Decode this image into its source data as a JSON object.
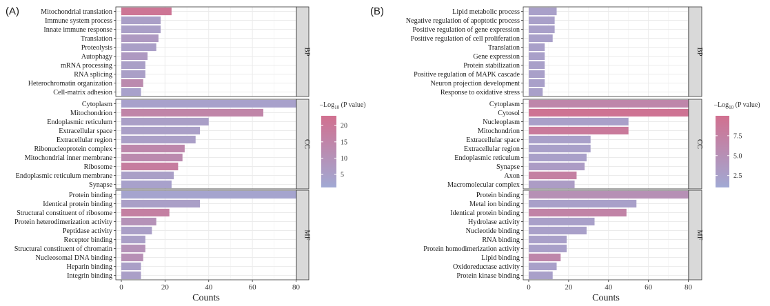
{
  "colors": {
    "low": "#a1a9d4",
    "high": "#d1708f",
    "grid": "#ebebeb",
    "strip": "#d9d9d9",
    "background": "#ffffff"
  },
  "panels": [
    {
      "letter": "(A)",
      "xlabel": "Counts",
      "xticks": [
        "0",
        "20",
        "40",
        "60",
        "80"
      ],
      "legend": {
        "title_prefix": "–Log",
        "title_sub": "10",
        "title_suffix": " (P value)",
        "tick_labels": [
          "20",
          "15",
          "10",
          "5"
        ]
      }
    },
    {
      "letter": "(B)",
      "xlabel": "Counts",
      "xticks": [
        "0",
        "20",
        "40",
        "60",
        "80"
      ],
      "legend": {
        "title_prefix": "–Log",
        "title_sub": "10",
        "title_suffix": " (P value)",
        "tick_labels": [
          "7.5",
          "5.0",
          "2.5"
        ]
      }
    }
  ],
  "chart_data": [
    {
      "type": "bar",
      "orientation": "horizontal",
      "title": "(A)",
      "xlabel": "Counts",
      "xlim": [
        0,
        85
      ],
      "color_legend": {
        "title": "–Log10 (P value)",
        "range": [
          1,
          23
        ],
        "ticks": [
          5,
          10,
          15,
          20
        ]
      },
      "facets": [
        {
          "name": "BP",
          "categories": [
            "Mitochondrial translation",
            "Immune system process",
            "Innate immune response",
            "Translation",
            "Proteolysis",
            "Autophagy",
            "mRNA processing",
            "RNA splicing",
            "Heterochromatin organization",
            "Cell-matrix adhesion"
          ],
          "values": [
            23,
            18,
            18,
            17,
            16,
            12,
            11,
            11,
            10,
            9
          ],
          "color_values": [
            21,
            5,
            5,
            7,
            5,
            7,
            5,
            5,
            13,
            4
          ]
        },
        {
          "name": "CC",
          "categories": [
            "Cytoplasm",
            "Mitochondrion",
            "Endoplasmic reticulum",
            "Extracellular space",
            "Extracellular region",
            "Ribonucleoprotein complex",
            "Mitochondrial inner membrane",
            "Ribosome",
            "Endoplasmic reticulum membrane",
            "Synapse"
          ],
          "values": [
            80,
            65,
            40,
            36,
            34,
            29,
            28,
            26,
            24,
            23
          ],
          "color_values": [
            4,
            15,
            5,
            5,
            5,
            14,
            13,
            18,
            5,
            4
          ]
        },
        {
          "name": "MF",
          "categories": [
            "Protein binding",
            "Identical protein binding",
            "Structural constituent of ribosome",
            "Protein heterodimerization activity",
            "Peptidase activity",
            "Receptor binding",
            "Structural constituent of chromatin",
            "Nucleosomal DNA binding",
            "Heparin binding",
            "Integrin binding"
          ],
          "values": [
            80,
            36,
            22,
            16,
            14,
            11,
            11,
            10,
            9,
            9
          ],
          "color_values": [
            3,
            5,
            17,
            10,
            5,
            5,
            10,
            11,
            5,
            5
          ]
        }
      ]
    },
    {
      "type": "bar",
      "orientation": "horizontal",
      "title": "(B)",
      "xlabel": "Counts",
      "xlim": [
        0,
        85
      ],
      "color_legend": {
        "title": "–Log10 (P value)",
        "range": [
          1,
          10
        ],
        "ticks": [
          2.5,
          5.0,
          7.5
        ]
      },
      "facets": [
        {
          "name": "BP",
          "categories": [
            "Lipid metabolic process",
            "Negative regulation of apoptotic process",
            "Positive regulation of gene expression",
            "Positive regulation of cell proliferation",
            "Translation",
            "Gene expression",
            "Protein stabilization",
            "Positive regulation of MAPK cascade",
            "Neuron projection development",
            "Response to oxidative stress"
          ],
          "values": [
            14,
            13,
            13,
            12,
            8,
            8,
            8,
            8,
            8,
            7
          ],
          "color_values": [
            2.5,
            2.5,
            2.5,
            2.5,
            2.5,
            2.5,
            2.5,
            2.5,
            2.5,
            2.5
          ]
        },
        {
          "name": "CC",
          "categories": [
            "Cytoplasm",
            "Cytosol",
            "Nucleoplasm",
            "Mitochondrion",
            "Extracellular space",
            "Extracellular region",
            "Endoplasmic reticulum",
            "Synapse",
            "Axon",
            "Macromolecular complex"
          ],
          "values": [
            80,
            80,
            50,
            50,
            31,
            31,
            29,
            28,
            24,
            23
          ],
          "color_values": [
            6.5,
            9.5,
            2.5,
            8.5,
            2.5,
            2.5,
            2.5,
            3,
            7.5,
            3
          ]
        },
        {
          "name": "MF",
          "categories": [
            "Protein binding",
            "Metal ion binding",
            "Identical protein binding",
            "Hydrolase activity",
            "Nucleotide binding",
            "RNA binding",
            "Protein homodimerization activity",
            "Lipid binding",
            "Oxidoreductase activity",
            "Protein kinase binding"
          ],
          "values": [
            80,
            54,
            49,
            33,
            29,
            19,
            19,
            16,
            14,
            12
          ],
          "color_values": [
            5,
            2.5,
            7,
            2.5,
            2.5,
            2.5,
            2.5,
            6.5,
            2.5,
            2.5
          ]
        }
      ]
    }
  ]
}
